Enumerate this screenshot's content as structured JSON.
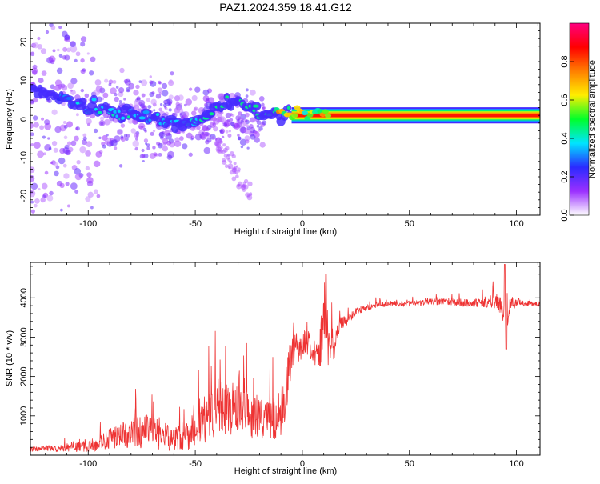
{
  "title": "PAZ1.2024.359.18.41.G12",
  "chart_data": [
    {
      "type": "heatmap",
      "xlabel": "Height of straight line (km)",
      "ylabel": "Frequency (Hz)",
      "xlim": [
        -127,
        111
      ],
      "ylim": [
        -25,
        25
      ],
      "x_ticks": [
        -100,
        -50,
        0,
        50,
        100
      ],
      "y_ticks": [
        -20,
        -10,
        0,
        10,
        20
      ],
      "colorbar": {
        "label": "Normalized spectral amplitude",
        "range": [
          0,
          1
        ],
        "ticks": [
          0.0,
          0.2,
          0.4,
          0.6,
          0.8
        ],
        "tick_labels": [
          "0.0",
          "0.2",
          "0.4",
          "0.6",
          "0.8"
        ],
        "colors": [
          "#ffffff",
          "#9b30ff",
          "#2a2aff",
          "#00e5ff",
          "#00ff2a",
          "#ffee00",
          "#ff7f00",
          "#ff0000",
          "#ff0080"
        ]
      },
      "ridge": {
        "x": [
          -127,
          -115,
          -105,
          -100,
          -95,
          -90,
          -85,
          -80,
          -75,
          -70,
          -65,
          -60,
          -55,
          -50,
          -45,
          -40,
          -35,
          -30,
          -25,
          -20,
          -15,
          -10,
          -5,
          0,
          5,
          10,
          20,
          40,
          60,
          80,
          95,
          111
        ],
        "y": [
          8,
          6,
          4,
          3,
          2.5,
          2,
          1.5,
          1.5,
          1,
          0.5,
          -0.5,
          -1,
          -1,
          -1,
          1,
          3,
          4,
          5,
          3,
          2,
          1.5,
          1.5,
          1,
          1,
          1.2,
          1,
          1,
          1,
          1,
          1,
          1,
          1
        ],
        "amplitude": [
          0.15,
          0.2,
          0.3,
          0.35,
          0.35,
          0.35,
          0.35,
          0.35,
          0.3,
          0.3,
          0.3,
          0.3,
          0.35,
          0.35,
          0.4,
          0.45,
          0.45,
          0.4,
          0.45,
          0.5,
          0.55,
          0.6,
          0.65,
          0.7,
          0.75,
          0.8,
          0.9,
          0.92,
          0.92,
          0.92,
          0.9,
          0.92
        ]
      }
    },
    {
      "type": "line",
      "xlabel": "Height of straight line (km)",
      "ylabel": "SNR (10 * v/v)",
      "xlim": [
        -127,
        111
      ],
      "ylim": [
        0,
        4900
      ],
      "x_ticks": [
        -100,
        -50,
        0,
        50,
        100
      ],
      "y_ticks": [
        1000,
        2000,
        3000,
        4000
      ],
      "color": "#ee3333",
      "series": [
        {
          "x": [
            -127,
            -120,
            -115,
            -110,
            -105,
            -100,
            -95,
            -90,
            -85,
            -80,
            -75,
            -70,
            -65,
            -60,
            -55,
            -50,
            -45,
            -40,
            -35,
            -30,
            -25,
            -20,
            -15,
            -10,
            -7,
            -5,
            -3,
            0,
            3,
            5,
            8,
            10,
            12,
            15,
            18,
            20,
            22,
            25,
            30,
            35,
            40,
            50,
            60,
            70,
            80,
            85,
            90,
            93,
            95,
            97,
            100,
            105,
            111
          ],
          "y": [
            150,
            180,
            160,
            200,
            200,
            230,
            300,
            420,
            500,
            560,
            600,
            620,
            480,
            420,
            500,
            700,
            900,
            1150,
            1200,
            1150,
            1000,
            1000,
            900,
            1050,
            1800,
            2600,
            2700,
            2800,
            2900,
            2700,
            2600,
            3300,
            2700,
            2800,
            3300,
            3400,
            3500,
            3650,
            3750,
            3800,
            3850,
            3850,
            3900,
            3900,
            3850,
            3900,
            3900,
            3750,
            3400,
            3800,
            3900,
            3850,
            3850
          ],
          "noise_amplitude": [
            60,
            70,
            80,
            100,
            130,
            160,
            200,
            260,
            320,
            380,
            420,
            430,
            380,
            330,
            400,
            500,
            600,
            700,
            700,
            650,
            600,
            600,
            550,
            650,
            700,
            500,
            400,
            350,
            350,
            400,
            500,
            700,
            500,
            350,
            250,
            150,
            120,
            100,
            80,
            70,
            70,
            70,
            80,
            90,
            110,
            140,
            200,
            350,
            450,
            250,
            120,
            70,
            60
          ]
        }
      ]
    }
  ]
}
